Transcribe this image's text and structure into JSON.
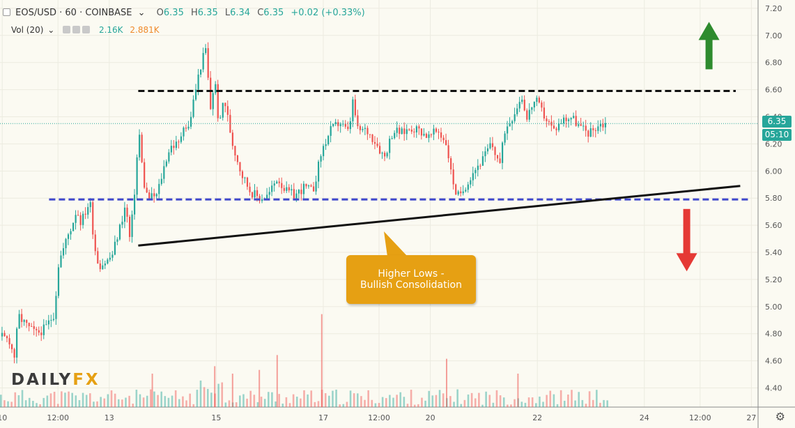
{
  "header": {
    "symbol": "EOS/USD · 60 · COINBASE",
    "open_label": "O",
    "open": "6.35",
    "high_label": "H",
    "high": "6.35",
    "low_label": "L",
    "low": "6.34",
    "close_label": "C",
    "close": "6.35",
    "change": "+0.02 (+0.33%)",
    "volume_label": "Vol (20)",
    "volume_a": "2.16K",
    "volume_b": "2.881K"
  },
  "price_axis": {
    "current_price": "6.35",
    "countdown": "05:10"
  },
  "callout": {
    "line1": "Higher Lows -",
    "line2": "Bullish Consolidation"
  },
  "logo": {
    "part1": "DAILY",
    "part2": "FX"
  },
  "colors": {
    "up": "#26a69a",
    "down": "#ef5350",
    "resistance": "#111111",
    "support": "#3f48cc",
    "trendline": "#111111",
    "callout": "#e6a013",
    "arrow_up": "#2e8b2e",
    "arrow_down": "#e53935"
  },
  "chart_data": {
    "type": "line",
    "title": "",
    "xlabel": "",
    "ylabel": "",
    "ylim": [
      4.3,
      7.22
    ],
    "y_ticks": [
      "7.20",
      "7.00",
      "6.80",
      "6.60",
      "6.40",
      "6.20",
      "6.00",
      "5.80",
      "5.60",
      "5.40",
      "5.20",
      "5.00",
      "4.80",
      "4.60",
      "4.40"
    ],
    "x_ticks": [
      {
        "label": "10",
        "t": 0.5
      },
      {
        "label": "12:00",
        "t": 13
      },
      {
        "label": "13",
        "t": 24.5
      },
      {
        "label": "15",
        "t": 48.5
      },
      {
        "label": "17",
        "t": 72.5
      },
      {
        "label": "12:00",
        "t": 85
      },
      {
        "label": "20",
        "t": 96.5
      },
      {
        "label": "22",
        "t": 120.5
      },
      {
        "label": "24",
        "t": 144.5
      },
      {
        "label": "12:00",
        "t": 157
      },
      {
        "label": "27",
        "t": 168.5
      }
    ],
    "xlim": [
      0,
      170
    ],
    "price_series": [
      [
        0,
        4.78
      ],
      [
        2,
        4.75
      ],
      [
        3,
        4.62
      ],
      [
        4,
        4.93
      ],
      [
        6,
        4.85
      ],
      [
        8,
        4.8
      ],
      [
        10,
        4.84
      ],
      [
        12,
        4.95
      ],
      [
        13,
        5.33
      ],
      [
        14,
        5.42
      ],
      [
        15,
        5.52
      ],
      [
        16,
        5.6
      ],
      [
        17,
        5.72
      ],
      [
        18,
        5.62
      ],
      [
        20,
        5.78
      ],
      [
        21,
        5.45
      ],
      [
        22,
        5.3
      ],
      [
        24,
        5.34
      ],
      [
        25,
        5.38
      ],
      [
        27,
        5.62
      ],
      [
        28,
        5.75
      ],
      [
        29,
        5.48
      ],
      [
        30,
        5.85
      ],
      [
        31,
        6.3
      ],
      [
        32,
        5.92
      ],
      [
        33,
        5.8
      ],
      [
        35,
        5.82
      ],
      [
        37,
        6.08
      ],
      [
        38,
        6.18
      ],
      [
        40,
        6.2
      ],
      [
        41,
        6.35
      ],
      [
        42,
        6.3
      ],
      [
        44,
        6.65
      ],
      [
        45,
        6.8
      ],
      [
        46,
        6.9
      ],
      [
        47,
        6.45
      ],
      [
        48,
        6.68
      ],
      [
        49,
        6.3
      ],
      [
        50,
        6.55
      ],
      [
        52,
        6.2
      ],
      [
        54,
        5.98
      ],
      [
        56,
        5.85
      ],
      [
        58,
        5.8
      ],
      [
        60,
        5.82
      ],
      [
        62,
        5.95
      ],
      [
        64,
        5.85
      ],
      [
        66,
        5.82
      ],
      [
        68,
        5.88
      ],
      [
        70,
        5.85
      ],
      [
        72,
        6.15
      ],
      [
        74,
        6.3
      ],
      [
        76,
        6.36
      ],
      [
        78,
        6.28
      ],
      [
        79,
        6.52
      ],
      [
        80,
        6.3
      ],
      [
        82,
        6.3
      ],
      [
        84,
        6.22
      ],
      [
        86,
        6.1
      ],
      [
        88,
        6.3
      ],
      [
        90,
        6.28
      ],
      [
        92,
        6.32
      ],
      [
        94,
        6.3
      ],
      [
        96,
        6.25
      ],
      [
        98,
        6.3
      ],
      [
        100,
        6.2
      ],
      [
        101,
        5.98
      ],
      [
        102,
        5.85
      ],
      [
        103,
        5.8
      ],
      [
        104,
        5.88
      ],
      [
        106,
        6.0
      ],
      [
        108,
        6.08
      ],
      [
        110,
        6.2
      ],
      [
        112,
        6.05
      ],
      [
        113,
        6.3
      ],
      [
        115,
        6.42
      ],
      [
        116,
        6.5
      ],
      [
        117,
        6.55
      ],
      [
        118,
        6.38
      ],
      [
        119,
        6.48
      ],
      [
        120,
        6.52
      ],
      [
        122,
        6.4
      ],
      [
        124,
        6.3
      ],
      [
        126,
        6.38
      ],
      [
        128,
        6.4
      ],
      [
        130,
        6.32
      ],
      [
        132,
        6.28
      ],
      [
        134,
        6.34
      ],
      [
        136,
        6.35
      ]
    ],
    "volume_range": [
      0,
      3000
    ],
    "volume_spikes": [
      {
        "t": 34,
        "value": 900
      },
      {
        "t": 48,
        "value": 1100
      },
      {
        "t": 52,
        "value": 900
      },
      {
        "t": 58,
        "value": 1000
      },
      {
        "t": 62,
        "value": 1400
      },
      {
        "t": 72,
        "value": 2500
      },
      {
        "t": 100,
        "value": 1300
      },
      {
        "t": 116,
        "value": 900
      }
    ],
    "annotations": {
      "resistance": {
        "t_start": 31,
        "t_end": 165,
        "price": 6.59
      },
      "support": {
        "t_start": 11,
        "t_end": 168,
        "price": 5.79
      },
      "trendline": {
        "start": [
          31,
          5.45
        ],
        "end": [
          166,
          5.89
        ]
      },
      "arrow_up": {
        "t": 159,
        "price_from": 6.75,
        "price_to": 7.1
      },
      "arrow_down": {
        "t": 154,
        "price_from": 5.72,
        "price_to": 5.26
      }
    },
    "current_price_line": 6.35
  }
}
